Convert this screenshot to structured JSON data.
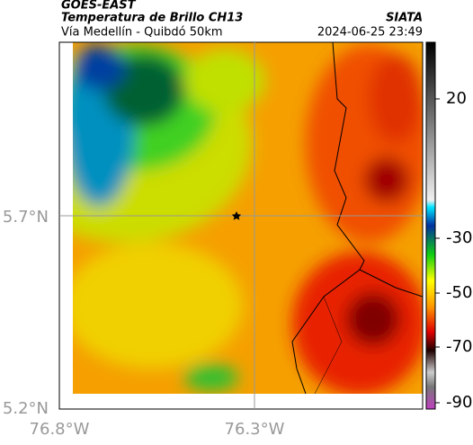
{
  "header": {
    "source": "GOES-EAST",
    "title": "Temperatura de Brillo CH13",
    "subtitle": "Vía Medellín - Quibdó 50km",
    "agency": "SIATA",
    "timestamp": "2024-06-25 23:49"
  },
  "map": {
    "lat_labels": [
      "5.7°N",
      "5.2°N"
    ],
    "lon_labels": [
      "76.8°W",
      "76.3°W"
    ]
  },
  "colorbar": {
    "labels": [
      "20",
      "-30",
      "-50",
      "-70",
      "-90"
    ]
  }
}
